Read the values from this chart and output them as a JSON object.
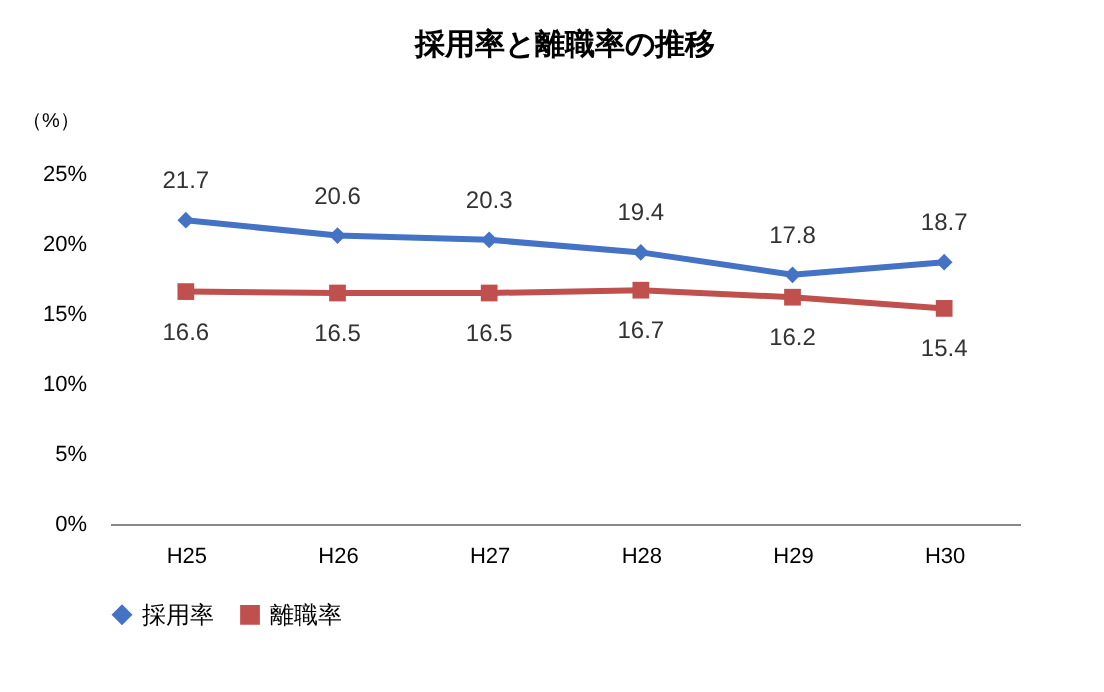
{
  "chart_data": {
    "type": "line",
    "title": "採用率と離職率の推移",
    "ylabel": "（%）",
    "categories": [
      "H25",
      "H26",
      "H27",
      "H28",
      "H29",
      "H30"
    ],
    "series": [
      {
        "name": "採用率",
        "color": "#4472c4",
        "marker": "diamond",
        "values": [
          21.7,
          20.6,
          20.3,
          19.4,
          17.8,
          18.7
        ]
      },
      {
        "name": "離職率",
        "color": "#c0504d",
        "marker": "square",
        "values": [
          16.6,
          16.5,
          16.5,
          16.7,
          16.2,
          15.4
        ]
      }
    ],
    "ylim": [
      0,
      25
    ],
    "yticks": [
      {
        "value": 0,
        "label": "0%"
      },
      {
        "value": 5,
        "label": "5%"
      },
      {
        "value": 10,
        "label": "10%"
      },
      {
        "value": 15,
        "label": "15%"
      },
      {
        "value": 20,
        "label": "20%"
      },
      {
        "value": 25,
        "label": "25%"
      }
    ],
    "data_labels": true,
    "grid": false,
    "legend": "bottom",
    "line_style": "solid"
  }
}
